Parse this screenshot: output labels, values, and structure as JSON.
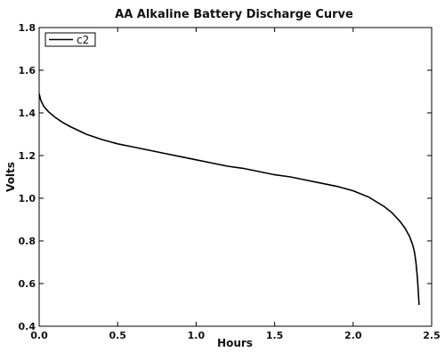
{
  "chart_data": {
    "type": "line",
    "title": "AA Alkaline Battery Discharge Curve",
    "xlabel": "Hours",
    "ylabel": "Volts",
    "xlim": [
      0.0,
      2.5
    ],
    "ylim": [
      0.4,
      1.8
    ],
    "xticks": [
      0.0,
      0.5,
      1.0,
      1.5,
      2.0,
      2.5
    ],
    "yticks": [
      0.4,
      0.6,
      0.8,
      1.0,
      1.2,
      1.4,
      1.6,
      1.8
    ],
    "xtick_labels": [
      "0.0",
      "0.5",
      "1.0",
      "1.5",
      "2.0",
      "2.5"
    ],
    "ytick_labels": [
      "0.4",
      "0.6",
      "0.8",
      "1.0",
      "1.2",
      "1.4",
      "1.6",
      "1.8"
    ],
    "grid": false,
    "legend": {
      "position": "top-left",
      "entries": [
        "c2"
      ]
    },
    "series": [
      {
        "name": "c2",
        "color": "#000000",
        "x": [
          0.0,
          0.01,
          0.03,
          0.06,
          0.1,
          0.15,
          0.2,
          0.3,
          0.4,
          0.5,
          0.6,
          0.7,
          0.8,
          0.9,
          1.0,
          1.1,
          1.2,
          1.3,
          1.4,
          1.5,
          1.6,
          1.7,
          1.8,
          1.9,
          2.0,
          2.1,
          2.2,
          2.25,
          2.3,
          2.33,
          2.36,
          2.38,
          2.39,
          2.4,
          2.41,
          2.42
        ],
        "y": [
          1.49,
          1.46,
          1.43,
          1.405,
          1.38,
          1.355,
          1.335,
          1.3,
          1.275,
          1.255,
          1.24,
          1.225,
          1.21,
          1.195,
          1.18,
          1.165,
          1.15,
          1.14,
          1.125,
          1.11,
          1.1,
          1.085,
          1.07,
          1.055,
          1.035,
          1.005,
          0.96,
          0.93,
          0.89,
          0.86,
          0.82,
          0.78,
          0.75,
          0.7,
          0.62,
          0.5
        ]
      }
    ]
  }
}
